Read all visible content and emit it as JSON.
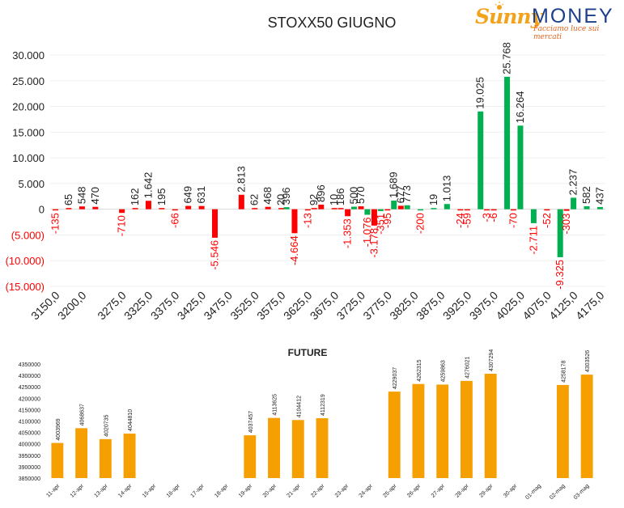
{
  "logo": {
    "sunny": "Sunny",
    "money": "MONEY",
    "tagline": "Facciamo luce sui mercati"
  },
  "chart_data": [
    {
      "type": "bar",
      "title": "STOXX50 GIUGNO",
      "xlabel": "",
      "ylabel": "",
      "ylim": [
        -15000,
        30000
      ],
      "y_ticks": [
        "30.000",
        "25.000",
        "20.000",
        "15.000",
        "10.000",
        "5.000",
        "0",
        "(5.000)",
        "(10.000)",
        "(15.000)"
      ],
      "x_tick_labels": [
        "3150,0",
        "3200,0",
        "3275,0",
        "3325,0",
        "3375,0",
        "3425,0",
        "3475,0",
        "3525,0",
        "3575,0",
        "3625,0",
        "3675,0",
        "3725,0",
        "3775,0",
        "3825,0",
        "3875,0",
        "3925,0",
        "3975,0",
        "4025,0",
        "4075,0",
        "4125,0",
        "4175,0"
      ],
      "grid": "horizontal",
      "colors": {
        "positive": "#00b050",
        "negative": "#ff0000"
      },
      "bars": [
        {
          "x": 3150,
          "value": -135,
          "label": "-135",
          "color": "negative"
        },
        {
          "x": 3175,
          "value": 65,
          "label": "65",
          "color": "negative"
        },
        {
          "x": 3200,
          "value": 548,
          "label": "548",
          "color": "negative"
        },
        {
          "x": 3225,
          "value": 470,
          "label": "470",
          "color": "negative"
        },
        {
          "x": 3275,
          "value": -710,
          "label": "-710",
          "color": "negative"
        },
        {
          "x": 3300,
          "value": 162,
          "label": "162",
          "color": "negative"
        },
        {
          "x": 3325,
          "value": 1642,
          "label": "1.642",
          "color": "negative"
        },
        {
          "x": 3350,
          "value": 195,
          "label": "195",
          "color": "negative"
        },
        {
          "x": 3375,
          "value": -66,
          "label": "-66",
          "color": "negative"
        },
        {
          "x": 3400,
          "value": 649,
          "label": "649",
          "color": "negative"
        },
        {
          "x": 3425,
          "value": 631,
          "label": "631",
          "color": "negative"
        },
        {
          "x": 3450,
          "value": -5546,
          "label": "-5.546",
          "color": "negative"
        },
        {
          "x": 3500,
          "value": 2813,
          "label": "2.813",
          "color": "negative"
        },
        {
          "x": 3525,
          "value": 62,
          "label": "62",
          "color": "negative"
        },
        {
          "x": 3550,
          "value": 468,
          "label": "468",
          "color": "negative"
        },
        {
          "x": 3575,
          "value": 20,
          "label": "20",
          "color": "negative"
        },
        {
          "x": 3585,
          "value": 396,
          "label": "396",
          "color": "positive"
        },
        {
          "x": 3600,
          "value": -4664,
          "label": "-4.664",
          "color": "negative"
        },
        {
          "x": 3625,
          "value": -13,
          "label": "-13",
          "color": "negative"
        },
        {
          "x": 3637,
          "value": 92,
          "label": "92",
          "color": "negative"
        },
        {
          "x": 3650,
          "value": 896,
          "label": "896",
          "color": "negative"
        },
        {
          "x": 3675,
          "value": 10,
          "label": "10",
          "color": "negative"
        },
        {
          "x": 3687,
          "value": 186,
          "label": "186",
          "color": "negative"
        },
        {
          "x": 3700,
          "value": -1353,
          "label": "-1.353",
          "color": "negative"
        },
        {
          "x": 3712,
          "value": 500,
          "label": "500",
          "color": "positive"
        },
        {
          "x": 3725,
          "value": 570,
          "label": "570",
          "color": "negative"
        },
        {
          "x": 3737,
          "value": -1076,
          "label": "-1.076",
          "color": "positive"
        },
        {
          "x": 3750,
          "value": -3178,
          "label": "-3.178",
          "color": "negative"
        },
        {
          "x": 3762,
          "value": -351,
          "label": "-351",
          "color": "positive"
        },
        {
          "x": 3775,
          "value": -95,
          "label": "-95",
          "color": "negative"
        },
        {
          "x": 3787,
          "value": 1689,
          "label": "1.689",
          "color": "positive"
        },
        {
          "x": 3800,
          "value": 677,
          "label": "677",
          "color": "negative"
        },
        {
          "x": 3812,
          "value": 773,
          "label": "773",
          "color": "positive"
        },
        {
          "x": 3837,
          "value": -200,
          "label": "-200",
          "color": "positive"
        },
        {
          "x": 3862,
          "value": 19,
          "label": "19",
          "color": "positive"
        },
        {
          "x": 3887,
          "value": 1013,
          "label": "1.013",
          "color": "positive"
        },
        {
          "x": 3912,
          "value": -24,
          "label": "-24",
          "color": "negative"
        },
        {
          "x": 3925,
          "value": -59,
          "label": "-59",
          "color": "negative"
        },
        {
          "x": 3950,
          "value": 19025,
          "label": "19.025",
          "color": "positive"
        },
        {
          "x": 3962,
          "value": -3,
          "label": "-3",
          "color": "negative"
        },
        {
          "x": 3975,
          "value": -6,
          "label": "-6",
          "color": "negative"
        },
        {
          "x": 4000,
          "value": 25768,
          "label": "25.768",
          "color": "positive"
        },
        {
          "x": 4012,
          "value": -70,
          "label": "-70",
          "color": "negative"
        },
        {
          "x": 4025,
          "value": 16264,
          "label": "16.264",
          "color": "positive"
        },
        {
          "x": 4050,
          "value": -2711,
          "label": "-2.711",
          "color": "positive"
        },
        {
          "x": 4075,
          "value": -52,
          "label": "-52",
          "color": "negative"
        },
        {
          "x": 4100,
          "value": -9325,
          "label": "-9.325",
          "color": "positive"
        },
        {
          "x": 4112,
          "value": -303,
          "label": "-303",
          "color": "negative"
        },
        {
          "x": 4125,
          "value": 2237,
          "label": "2.237",
          "color": "positive"
        },
        {
          "x": 4150,
          "value": 582,
          "label": "582",
          "color": "positive"
        },
        {
          "x": 4175,
          "value": 437,
          "label": "437",
          "color": "positive"
        }
      ]
    },
    {
      "type": "bar",
      "title": "FUTURE",
      "xlabel": "",
      "ylabel": "",
      "ylim": [
        3850000,
        4350000
      ],
      "y_ticks": [
        "4350000",
        "4300000",
        "4250000",
        "4200000",
        "4150000",
        "4100000",
        "4050000",
        "4000000",
        "3950000",
        "3900000",
        "3850000"
      ],
      "grid": "none",
      "color": "#f59f00",
      "categories": [
        "11-apr",
        "12-apr",
        "13-apr",
        "14-apr",
        "15-apr",
        "16-apr",
        "17-apr",
        "18-apr",
        "19-apr",
        "20-apr",
        "21-apr",
        "22-apr",
        "23-apr",
        "24-apr",
        "25-apr",
        "26-apr",
        "27-apr",
        "28-apr",
        "29-apr",
        "30-apr",
        "01-mag",
        "02-mag",
        "03-mag"
      ],
      "values": [
        4003969,
        4068637,
        4020735,
        4044810,
        null,
        null,
        null,
        null,
        4037457,
        4113625,
        4104412,
        4112319,
        null,
        null,
        4229037,
        4262315,
        4259863,
        4276021,
        4307294,
        null,
        null,
        4258178,
        4303526
      ]
    }
  ]
}
